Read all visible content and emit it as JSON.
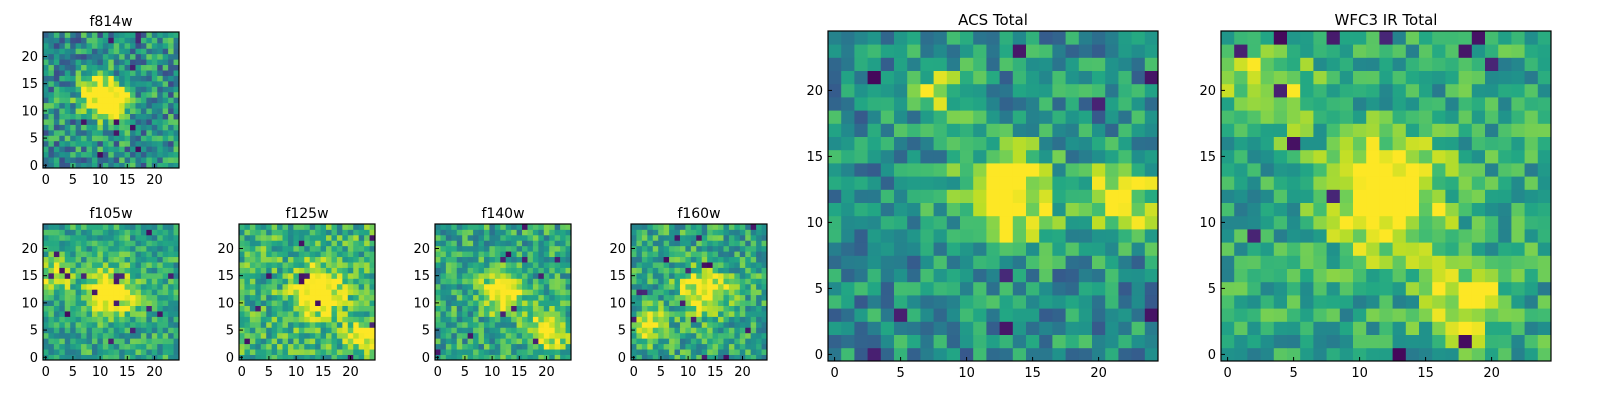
{
  "chart_data": [
    {
      "type": "heatmap",
      "title": "f814w",
      "colormap": "viridis",
      "xlim": [
        0,
        25
      ],
      "ylim": [
        0,
        25
      ],
      "xticks": [
        "0",
        "5",
        "10",
        "15",
        "20"
      ],
      "yticks": [
        "0",
        "5",
        "10",
        "15",
        "20"
      ],
      "seed": 11,
      "clusters": [
        [
          10,
          13,
          2.5,
          0.7
        ],
        [
          13,
          11,
          2.0,
          0.5
        ]
      ],
      "noise": 0.55,
      "offset": 0.0
    },
    {
      "type": "heatmap",
      "title": "f105w",
      "colormap": "viridis",
      "xlim": [
        0,
        25
      ],
      "ylim": [
        0,
        25
      ],
      "xticks": [
        "0",
        "5",
        "10",
        "15",
        "20"
      ],
      "yticks": [
        "0",
        "5",
        "10",
        "15",
        "20"
      ],
      "seed": 23,
      "clusters": [
        [
          12,
          12,
          3.0,
          0.6
        ],
        [
          2,
          15,
          2.0,
          0.4
        ]
      ],
      "noise": 0.4,
      "offset": 0.1
    },
    {
      "type": "heatmap",
      "title": "f125w",
      "colormap": "viridis",
      "xlim": [
        0,
        25
      ],
      "ylim": [
        0,
        25
      ],
      "xticks": [
        "0",
        "5",
        "10",
        "15",
        "20"
      ],
      "yticks": [
        "0",
        "5",
        "10",
        "15",
        "20"
      ],
      "seed": 37,
      "clusters": [
        [
          14,
          12,
          3.0,
          0.6
        ],
        [
          22,
          4,
          2.0,
          0.4
        ]
      ],
      "noise": 0.45,
      "offset": 0.15
    },
    {
      "type": "heatmap",
      "title": "f140w",
      "colormap": "viridis",
      "xlim": [
        0,
        25
      ],
      "ylim": [
        0,
        25
      ],
      "xticks": [
        "0",
        "5",
        "10",
        "15",
        "20"
      ],
      "yticks": [
        "0",
        "5",
        "10",
        "15",
        "20"
      ],
      "seed": 51,
      "clusters": [
        [
          12,
          12,
          2.5,
          0.6
        ],
        [
          20,
          5,
          2.5,
          0.5
        ]
      ],
      "noise": 0.45,
      "offset": 0.1
    },
    {
      "type": "heatmap",
      "title": "f160w",
      "colormap": "viridis",
      "xlim": [
        0,
        25
      ],
      "ylim": [
        0,
        25
      ],
      "xticks": [
        "0",
        "5",
        "10",
        "15",
        "20"
      ],
      "yticks": [
        "0",
        "5",
        "10",
        "15",
        "20"
      ],
      "seed": 67,
      "clusters": [
        [
          13,
          12,
          3.0,
          0.5
        ],
        [
          3,
          6,
          2.0,
          0.4
        ]
      ],
      "noise": 0.45,
      "offset": 0.1
    },
    {
      "type": "heatmap",
      "title": "ACS Total",
      "colormap": "viridis",
      "xlim": [
        0,
        25
      ],
      "ylim": [
        0,
        25
      ],
      "xticks": [
        "0",
        "5",
        "10",
        "15",
        "20"
      ],
      "yticks": [
        "0",
        "5",
        "10",
        "15",
        "20"
      ],
      "seed": 79,
      "clusters": [
        [
          13,
          12,
          2.5,
          0.7
        ],
        [
          22,
          12,
          2.0,
          0.5
        ],
        [
          8,
          20,
          1.5,
          0.4
        ]
      ],
      "noise": 0.45,
      "offset": 0.0
    },
    {
      "type": "heatmap",
      "title": "WFC3 IR Total",
      "colormap": "viridis",
      "xlim": [
        0,
        25
      ],
      "ylim": [
        0,
        25
      ],
      "xticks": [
        "0",
        "5",
        "10",
        "15",
        "20"
      ],
      "yticks": [
        "0",
        "5",
        "10",
        "15",
        "20"
      ],
      "seed": 97,
      "clusters": [
        [
          12,
          12,
          3.0,
          0.6
        ],
        [
          18,
          4,
          2.0,
          0.4
        ],
        [
          3,
          20,
          2.0,
          0.4
        ]
      ],
      "noise": 0.4,
      "offset": 0.1
    }
  ]
}
